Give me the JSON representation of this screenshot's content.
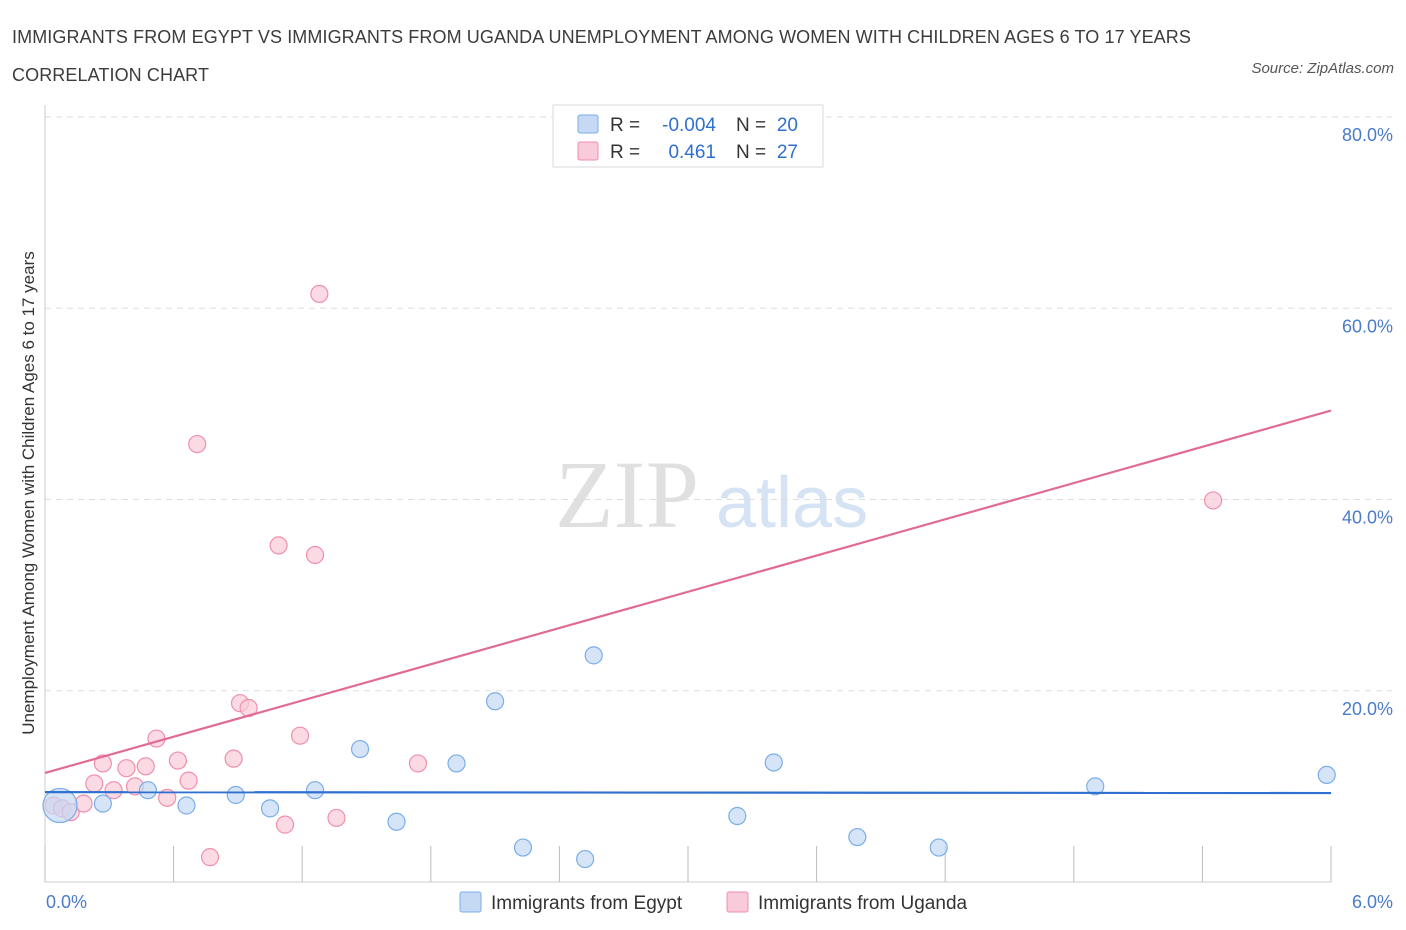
{
  "title": "IMMIGRANTS FROM EGYPT VS IMMIGRANTS FROM UGANDA UNEMPLOYMENT AMONG WOMEN WITH CHILDREN AGES 6 TO 17 YEARS CORRELATION CHART",
  "source": "Source: ZipAtlas.com",
  "watermark": {
    "zip": "ZIP",
    "atlas": "atlas"
  },
  "colors": {
    "egypt": "#7aaee8",
    "egypt_fill": "#c5d9f5",
    "uganda": "#f08fae",
    "uganda_fill": "#f9cad9",
    "egypt_line": "#2f6fcf",
    "uganda_line": "#e06b94",
    "tick": "#4a7cc9"
  },
  "legend": {
    "egypt": {
      "r_label": "R =",
      "r_value": "-0.004",
      "n_label": "N =",
      "n_value": "20"
    },
    "uganda": {
      "r_label": "R =",
      "r_value": "0.461",
      "n_label": "N =",
      "n_value": "27"
    }
  },
  "chart_data": {
    "type": "scatter",
    "xlabel": "",
    "ylabel": "Unemployment Among Women with Children Ages 6 to 17 years",
    "xlim": [
      0,
      6
    ],
    "ylim": [
      0,
      80
    ],
    "x_tick_labels": [
      {
        "value": 0,
        "label": "0.0%"
      },
      {
        "value": 6,
        "label": "6.0%"
      }
    ],
    "y_tick_labels": [
      {
        "value": 20,
        "label": "20.0%"
      },
      {
        "value": 40,
        "label": "40.0%"
      },
      {
        "value": 60,
        "label": "60.0%"
      },
      {
        "value": 80,
        "label": "80.0%"
      }
    ],
    "series": [
      {
        "name": "Immigrants from Egypt",
        "trend": {
          "x0": 0,
          "y0": 9.4,
          "x1": 6,
          "y1": 9.3
        },
        "points": [
          {
            "x": 0.07,
            "y": 8.0,
            "big": true
          },
          {
            "x": 0.27,
            "y": 8.2
          },
          {
            "x": 0.48,
            "y": 9.6
          },
          {
            "x": 0.66,
            "y": 8.0
          },
          {
            "x": 0.89,
            "y": 9.1
          },
          {
            "x": 1.05,
            "y": 7.7
          },
          {
            "x": 1.26,
            "y": 9.6
          },
          {
            "x": 1.47,
            "y": 13.9
          },
          {
            "x": 1.64,
            "y": 6.3
          },
          {
            "x": 1.92,
            "y": 12.4
          },
          {
            "x": 2.1,
            "y": 18.9
          },
          {
            "x": 2.23,
            "y": 3.6
          },
          {
            "x": 2.52,
            "y": 2.4
          },
          {
            "x": 2.56,
            "y": 23.7
          },
          {
            "x": 3.23,
            "y": 6.9
          },
          {
            "x": 3.4,
            "y": 12.5
          },
          {
            "x": 3.79,
            "y": 4.7
          },
          {
            "x": 4.17,
            "y": 3.6
          },
          {
            "x": 4.9,
            "y": 10.0
          },
          {
            "x": 5.98,
            "y": 11.2
          }
        ]
      },
      {
        "name": "Immigrants from Uganda",
        "trend": {
          "x0": 0,
          "y0": 11.4,
          "x1": 6,
          "y1": 49.3
        },
        "points": [
          {
            "x": 0.04,
            "y": 8.0
          },
          {
            "x": 0.08,
            "y": 7.7
          },
          {
            "x": 0.12,
            "y": 7.3
          },
          {
            "x": 0.18,
            "y": 8.2
          },
          {
            "x": 0.23,
            "y": 10.3
          },
          {
            "x": 0.27,
            "y": 12.4
          },
          {
            "x": 0.32,
            "y": 9.6
          },
          {
            "x": 0.38,
            "y": 11.9
          },
          {
            "x": 0.42,
            "y": 10.0
          },
          {
            "x": 0.47,
            "y": 12.1
          },
          {
            "x": 0.52,
            "y": 15.0
          },
          {
            "x": 0.57,
            "y": 8.8
          },
          {
            "x": 0.62,
            "y": 12.7
          },
          {
            "x": 0.67,
            "y": 10.6
          },
          {
            "x": 0.71,
            "y": 45.8
          },
          {
            "x": 0.77,
            "y": 2.6
          },
          {
            "x": 0.88,
            "y": 12.9
          },
          {
            "x": 0.91,
            "y": 18.7
          },
          {
            "x": 0.95,
            "y": 18.2
          },
          {
            "x": 1.09,
            "y": 35.2
          },
          {
            "x": 1.12,
            "y": 6.0
          },
          {
            "x": 1.19,
            "y": 15.3
          },
          {
            "x": 1.26,
            "y": 34.2
          },
          {
            "x": 1.28,
            "y": 61.5
          },
          {
            "x": 1.36,
            "y": 6.7
          },
          {
            "x": 1.74,
            "y": 12.4
          },
          {
            "x": 5.45,
            "y": 39.9
          }
        ]
      }
    ],
    "legend_position": "top-center"
  }
}
